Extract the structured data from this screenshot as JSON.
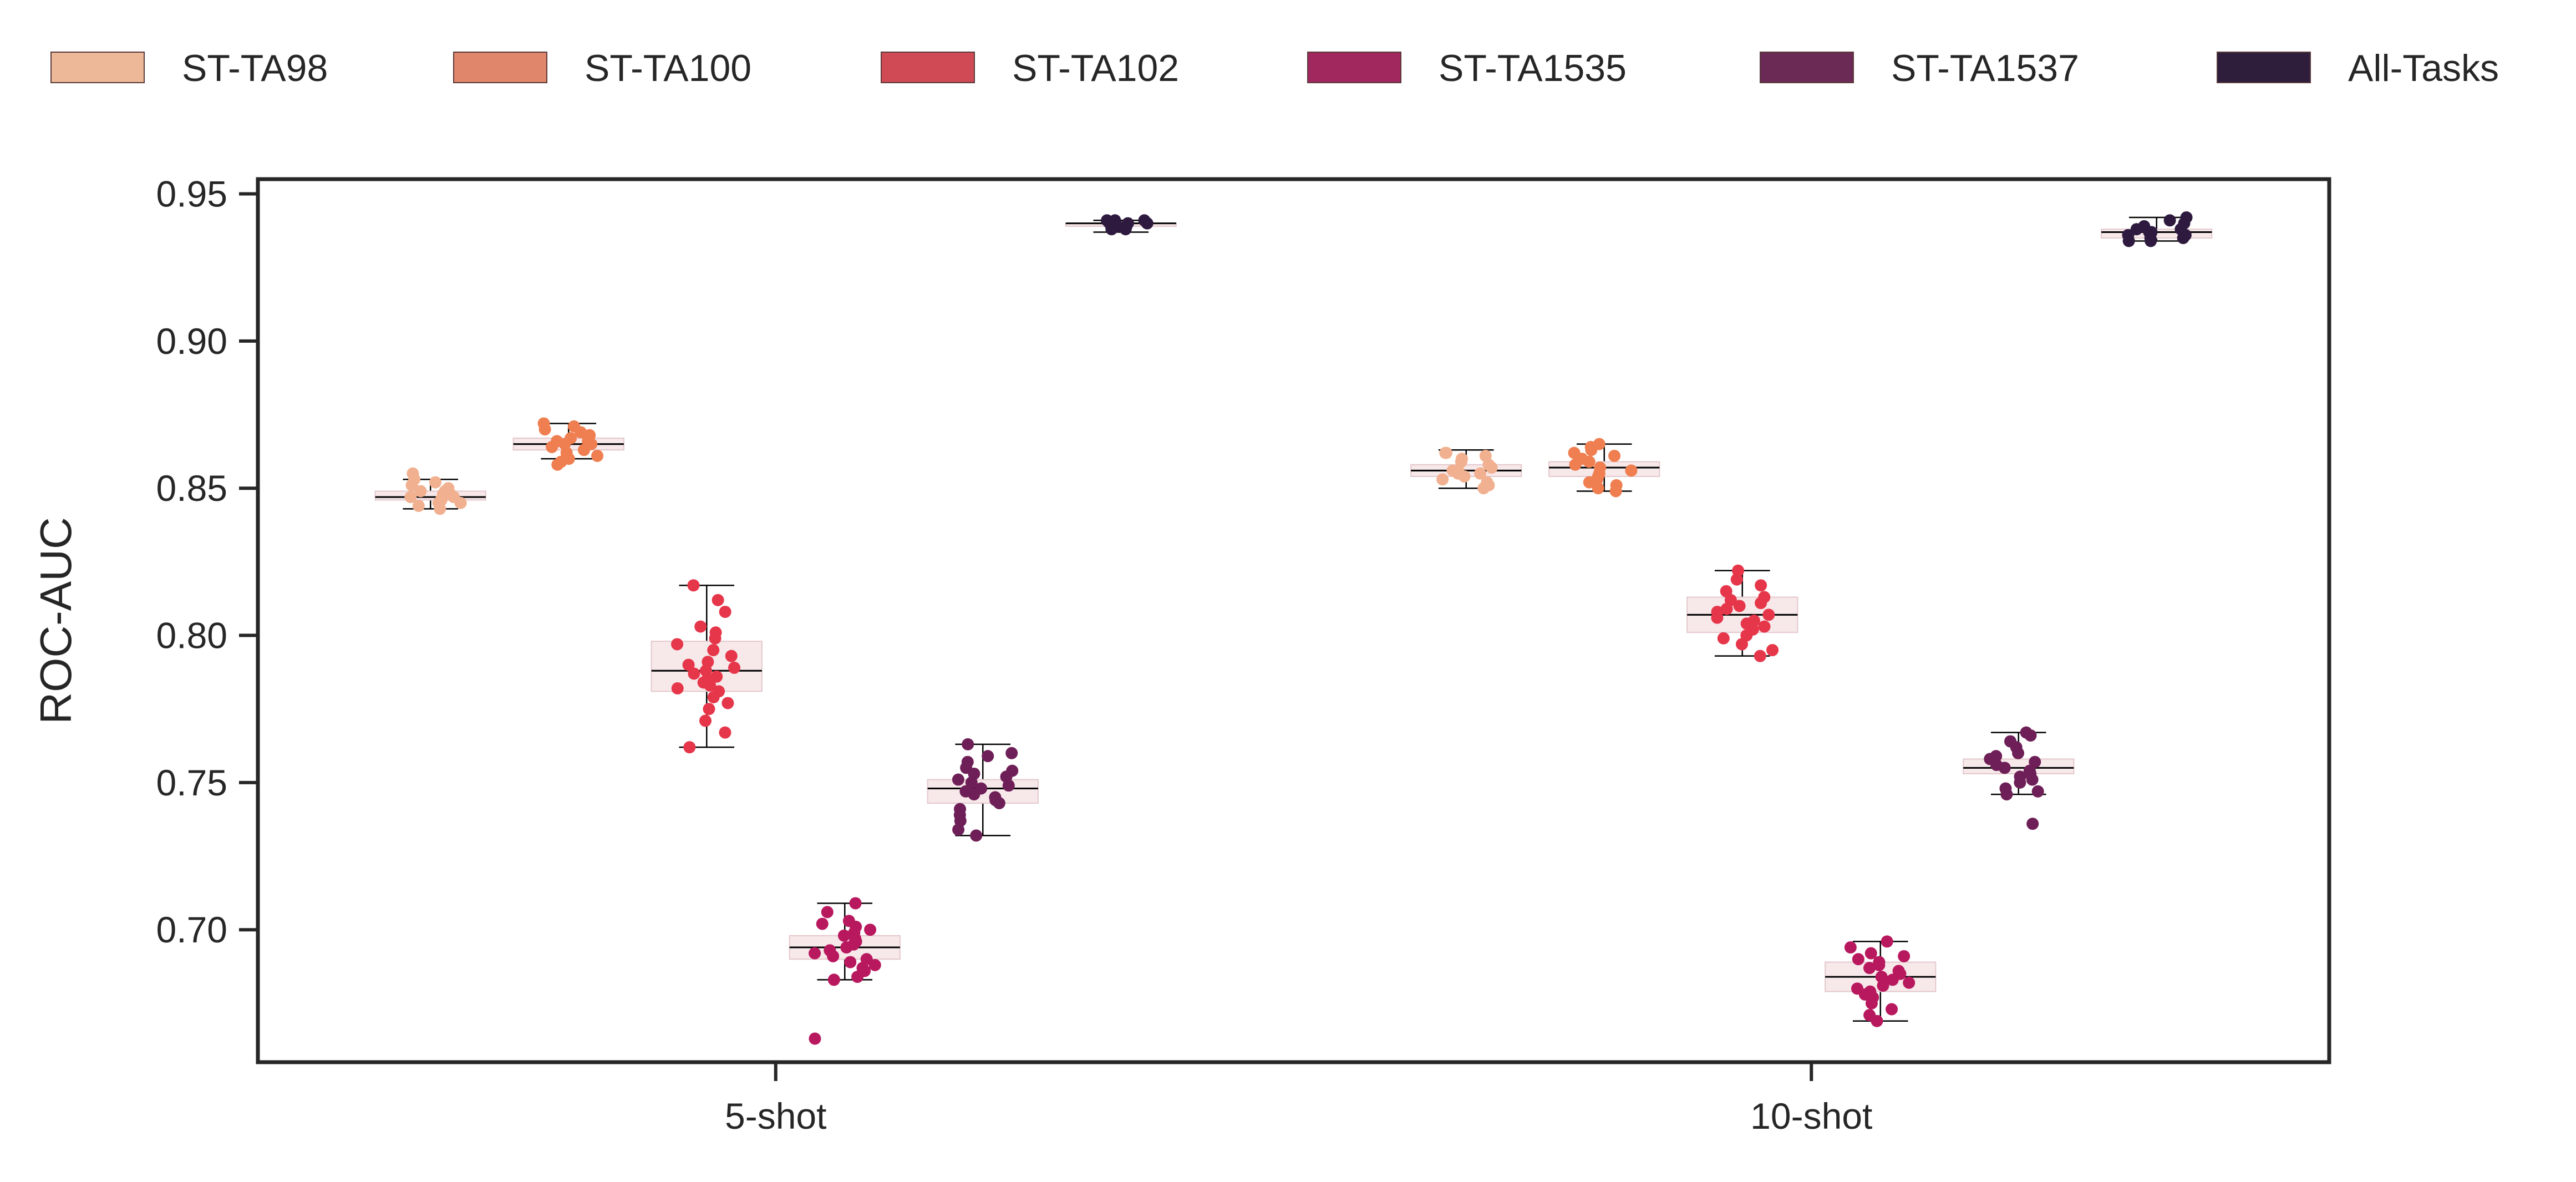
{
  "chart_data": {
    "type": "box+strip",
    "title": "",
    "xlabel": "",
    "ylabel": "ROC-AUC",
    "ylim": [
      0.655,
      0.955
    ],
    "yticks": [
      0.7,
      0.75,
      0.8,
      0.85,
      0.9,
      0.95
    ],
    "ytick_labels": [
      "0.70",
      "0.75",
      "0.80",
      "0.85",
      "0.90",
      "0.95"
    ],
    "grid": false,
    "legend_position": "top (above plot, single row)",
    "categories": [
      "5-shot",
      "10-shot"
    ],
    "series": [
      {
        "name": "ST-TA98",
        "color": "#F1B190",
        "legend_color": "#EDB898",
        "box": [
          {
            "whisker_low": 0.843,
            "q1": 0.846,
            "median": 0.847,
            "q3": 0.849,
            "whisker_high": 0.853
          },
          {
            "whisker_low": 0.85,
            "q1": 0.854,
            "median": 0.856,
            "q3": 0.858,
            "whisker_high": 0.863
          }
        ],
        "points": [
          [
            0.843,
            0.844,
            0.845,
            0.845,
            0.846,
            0.846,
            0.847,
            0.847,
            0.848,
            0.848,
            0.849,
            0.849,
            0.85,
            0.851,
            0.852,
            0.853,
            0.855
          ],
          [
            0.85,
            0.851,
            0.852,
            0.853,
            0.854,
            0.855,
            0.855,
            0.856,
            0.856,
            0.857,
            0.858,
            0.859,
            0.86,
            0.861,
            0.862,
            0.862
          ]
        ]
      },
      {
        "name": "ST-TA100",
        "color": "#EF7E50",
        "legend_color": "#E0866A",
        "box": [
          {
            "whisker_low": 0.86,
            "q1": 0.863,
            "median": 0.865,
            "q3": 0.867,
            "whisker_high": 0.872
          },
          {
            "whisker_low": 0.849,
            "q1": 0.854,
            "median": 0.857,
            "q3": 0.859,
            "whisker_high": 0.865
          }
        ],
        "points": [
          [
            0.858,
            0.859,
            0.86,
            0.861,
            0.862,
            0.863,
            0.864,
            0.865,
            0.865,
            0.866,
            0.866,
            0.867,
            0.868,
            0.869,
            0.87,
            0.871,
            0.872
          ],
          [
            0.849,
            0.85,
            0.851,
            0.852,
            0.853,
            0.854,
            0.855,
            0.856,
            0.857,
            0.858,
            0.859,
            0.86,
            0.861,
            0.862,
            0.863,
            0.864,
            0.865
          ]
        ]
      },
      {
        "name": "ST-TA102",
        "color": "#E6364A",
        "legend_color": "#CF4A55",
        "box": [
          {
            "whisker_low": 0.762,
            "q1": 0.781,
            "median": 0.788,
            "q3": 0.798,
            "whisker_high": 0.817
          },
          {
            "whisker_low": 0.793,
            "q1": 0.801,
            "median": 0.807,
            "q3": 0.813,
            "whisker_high": 0.822
          }
        ],
        "points": [
          [
            0.762,
            0.767,
            0.771,
            0.775,
            0.777,
            0.779,
            0.781,
            0.782,
            0.783,
            0.784,
            0.785,
            0.786,
            0.787,
            0.788,
            0.789,
            0.79,
            0.791,
            0.793,
            0.795,
            0.797,
            0.799,
            0.801,
            0.803,
            0.808,
            0.812,
            0.817
          ],
          [
            0.793,
            0.795,
            0.797,
            0.799,
            0.8,
            0.802,
            0.803,
            0.804,
            0.805,
            0.806,
            0.807,
            0.808,
            0.809,
            0.81,
            0.811,
            0.812,
            0.813,
            0.815,
            0.817,
            0.819,
            0.822
          ]
        ]
      },
      {
        "name": "ST-TA1535",
        "color": "#B8185E",
        "legend_color": "#A1285E",
        "box": [
          {
            "whisker_low": 0.683,
            "q1": 0.69,
            "median": 0.694,
            "q3": 0.698,
            "whisker_high": 0.709
          },
          {
            "whisker_low": 0.669,
            "q1": 0.679,
            "median": 0.684,
            "q3": 0.689,
            "whisker_high": 0.696
          }
        ],
        "points": [
          [
            0.663,
            0.683,
            0.684,
            0.686,
            0.687,
            0.688,
            0.689,
            0.69,
            0.691,
            0.692,
            0.693,
            0.694,
            0.695,
            0.696,
            0.697,
            0.698,
            0.699,
            0.7,
            0.701,
            0.702,
            0.703,
            0.706,
            0.709
          ],
          [
            0.669,
            0.671,
            0.673,
            0.675,
            0.677,
            0.678,
            0.679,
            0.68,
            0.681,
            0.682,
            0.683,
            0.684,
            0.685,
            0.686,
            0.687,
            0.688,
            0.689,
            0.69,
            0.691,
            0.692,
            0.694,
            0.696
          ]
        ]
      },
      {
        "name": "ST-TA1537",
        "color": "#6E1F57",
        "legend_color": "#6B2A56",
        "box": [
          {
            "whisker_low": 0.732,
            "q1": 0.743,
            "median": 0.748,
            "q3": 0.751,
            "whisker_high": 0.763
          },
          {
            "whisker_low": 0.746,
            "q1": 0.753,
            "median": 0.755,
            "q3": 0.758,
            "whisker_high": 0.767
          }
        ],
        "points": [
          [
            0.732,
            0.734,
            0.737,
            0.739,
            0.741,
            0.743,
            0.744,
            0.745,
            0.746,
            0.747,
            0.748,
            0.749,
            0.75,
            0.751,
            0.752,
            0.753,
            0.754,
            0.755,
            0.757,
            0.759,
            0.76,
            0.763
          ],
          [
            0.736,
            0.746,
            0.747,
            0.748,
            0.75,
            0.751,
            0.752,
            0.753,
            0.754,
            0.755,
            0.756,
            0.757,
            0.758,
            0.759,
            0.76,
            0.762,
            0.764,
            0.766,
            0.767
          ]
        ]
      },
      {
        "name": "All-Tasks",
        "color": "#2E1A3F",
        "legend_color": "#2E1E3C",
        "box": [
          {
            "whisker_low": 0.937,
            "q1": 0.939,
            "median": 0.94,
            "q3": 0.94,
            "whisker_high": 0.941
          },
          {
            "whisker_low": 0.934,
            "q1": 0.935,
            "median": 0.937,
            "q3": 0.938,
            "whisker_high": 0.942
          }
        ],
        "points": [
          [
            0.938,
            0.938,
            0.939,
            0.939,
            0.939,
            0.94,
            0.94,
            0.94,
            0.94,
            0.941,
            0.941,
            0.941
          ],
          [
            0.934,
            0.934,
            0.935,
            0.935,
            0.936,
            0.936,
            0.937,
            0.937,
            0.938,
            0.938,
            0.939,
            0.94,
            0.941,
            0.942
          ]
        ]
      }
    ]
  }
}
